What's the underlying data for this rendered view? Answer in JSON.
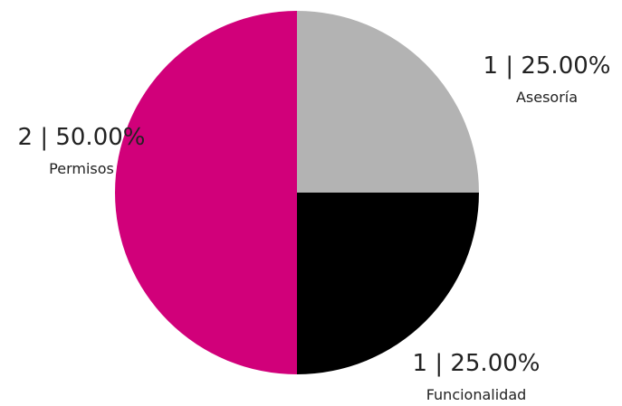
{
  "chart_data": {
    "type": "pie",
    "title": "",
    "legend": "none",
    "slices": [
      {
        "category": "Asesoría",
        "value": 1,
        "percent": "25.00%",
        "color": "#b3b3b3"
      },
      {
        "category": "Funcionalidad",
        "value": 1,
        "percent": "25.00%",
        "color": "#000000"
      },
      {
        "category": "Permisos",
        "value": 2,
        "percent": "50.00%",
        "color": "#d1007a"
      }
    ],
    "labels": [
      {
        "value_text": "1 | 25.00%",
        "category": "Asesoría"
      },
      {
        "value_text": "1 | 25.00%",
        "category": "Funcionalidad"
      },
      {
        "value_text": "2 | 50.00%",
        "category": "Permisos"
      }
    ]
  }
}
